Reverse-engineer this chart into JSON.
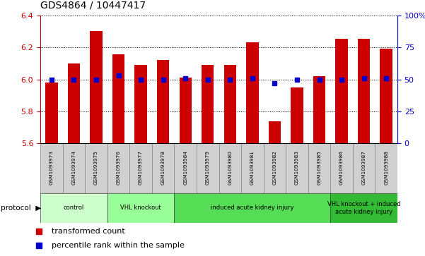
{
  "title": "GDS4864 / 10447417",
  "samples": [
    "GSM1093973",
    "GSM1093974",
    "GSM1093975",
    "GSM1093976",
    "GSM1093977",
    "GSM1093978",
    "GSM1093984",
    "GSM1093979",
    "GSM1093980",
    "GSM1093981",
    "GSM1093982",
    "GSM1093983",
    "GSM1093985",
    "GSM1093986",
    "GSM1093987",
    "GSM1093988"
  ],
  "transformed_count": [
    5.98,
    6.1,
    6.3,
    6.155,
    6.09,
    6.12,
    6.01,
    6.09,
    6.09,
    6.23,
    5.74,
    5.95,
    6.02,
    6.255,
    6.255,
    6.19
  ],
  "percentile_rank": [
    50,
    50,
    50,
    53,
    50,
    50,
    51,
    50,
    50,
    51,
    47,
    50,
    50,
    50,
    51,
    51
  ],
  "groups": [
    {
      "label": "control",
      "start": 0,
      "end": 2,
      "color": "#ccffcc"
    },
    {
      "label": "VHL knockout",
      "start": 3,
      "end": 5,
      "color": "#99ff99"
    },
    {
      "label": "induced acute kidney injury",
      "start": 6,
      "end": 12,
      "color": "#55dd55"
    },
    {
      "label": "VHL knockout + induced\nacute kidney injury",
      "start": 13,
      "end": 15,
      "color": "#33bb33"
    }
  ],
  "ylim_left": [
    5.6,
    6.4
  ],
  "ylim_right": [
    0,
    100
  ],
  "yticks_left": [
    5.6,
    5.8,
    6.0,
    6.2,
    6.4
  ],
  "yticks_right": [
    0,
    25,
    50,
    75,
    100
  ],
  "bar_color": "#cc0000",
  "dot_color": "#0000cc",
  "bar_bottom": 5.6
}
